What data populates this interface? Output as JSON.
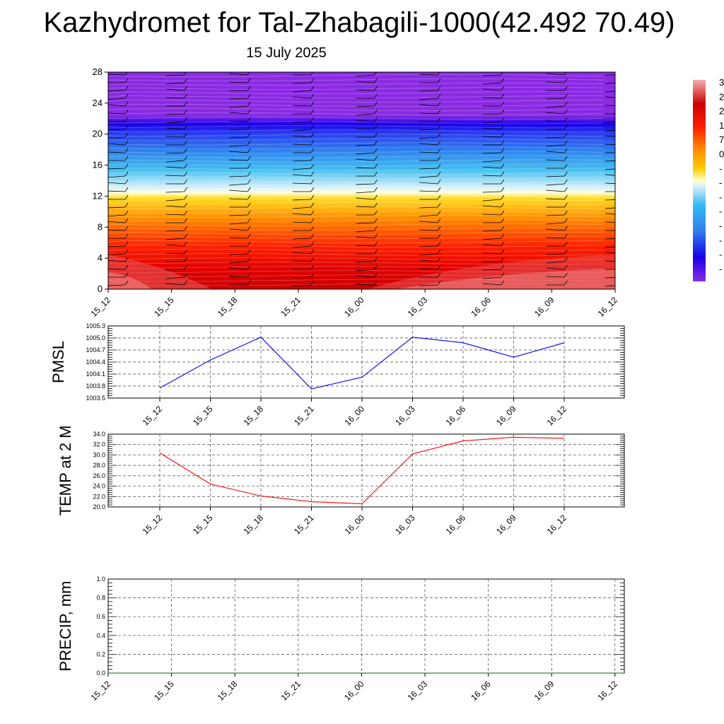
{
  "title": "Kazhydromet for Tal-Zhabagili-1000(42.492 70.49)",
  "subtitle": "15 July 2025",
  "chart_data": [
    {
      "type": "heatmap",
      "name": "vertical temperature cross-section with wind barbs",
      "x_ticks": [
        "15_12",
        "15_15",
        "15_18",
        "15_21",
        "16_00",
        "16_03",
        "16_06",
        "16_09",
        "16_12"
      ],
      "y_ticks": [
        0,
        4,
        8,
        12,
        16,
        20,
        24,
        28
      ],
      "ylim": [
        0,
        28
      ],
      "colorbar_visible_labels": [
        "3",
        "2",
        "2",
        "1",
        "7",
        "0",
        "-",
        "-",
        "-",
        "-",
        "-",
        "-",
        "-",
        "-"
      ],
      "colors": [
        "#d83d3d",
        "#cc0000",
        "#ff3300",
        "#ff8800",
        "#ffcc00",
        "#ffffe8",
        "#c0e6f6",
        "#33bbf0",
        "#2f80ee",
        "#2a3af0",
        "#1a00e8",
        "#8a2be2"
      ]
    },
    {
      "type": "line",
      "ylabel": "PMSL",
      "categories": [
        "15_12",
        "15_15",
        "15_18",
        "15_21",
        "16_00",
        "16_03",
        "16_06",
        "16_09",
        "16_12"
      ],
      "ylim": [
        1003.5,
        1005.3
      ],
      "y_ticks": [
        "1003.5",
        "1003.8",
        "1004.1",
        "1004.4",
        "1004.7",
        "1005.0",
        "1005.3"
      ],
      "values": [
        1003.75,
        1004.45,
        1005.02,
        1003.73,
        1004.02,
        1005.02,
        1004.88,
        1004.52,
        1004.88
      ],
      "color": "#0000ff"
    },
    {
      "type": "line",
      "ylabel": "TEMP at 2 M",
      "categories": [
        "15_12",
        "15_15",
        "15_18",
        "15_21",
        "16_00",
        "16_03",
        "16_06",
        "16_09",
        "16_12"
      ],
      "ylim": [
        20.0,
        34.0
      ],
      "y_ticks": [
        "20.0",
        "22.0",
        "24.0",
        "26.0",
        "28.0",
        "30.0",
        "32.0",
        "34.0"
      ],
      "values": [
        30.4,
        24.4,
        22.1,
        21.0,
        20.6,
        30.2,
        32.7,
        33.4,
        33.2
      ],
      "color": "#ff0000"
    },
    {
      "type": "line",
      "ylabel": "PRECIP, mm",
      "categories": [
        "15_12",
        "15_15",
        "15_18",
        "15_21",
        "16_00",
        "16_03",
        "16_06",
        "16_09",
        "16_12"
      ],
      "ylim": [
        0.0,
        1.0
      ],
      "y_ticks": [
        "0.0",
        "0.2",
        "0.4",
        "0.6",
        "0.8",
        "1.0"
      ],
      "values": [
        0,
        0,
        0,
        0,
        0,
        0,
        0,
        0,
        0
      ],
      "color": "#006400"
    }
  ]
}
